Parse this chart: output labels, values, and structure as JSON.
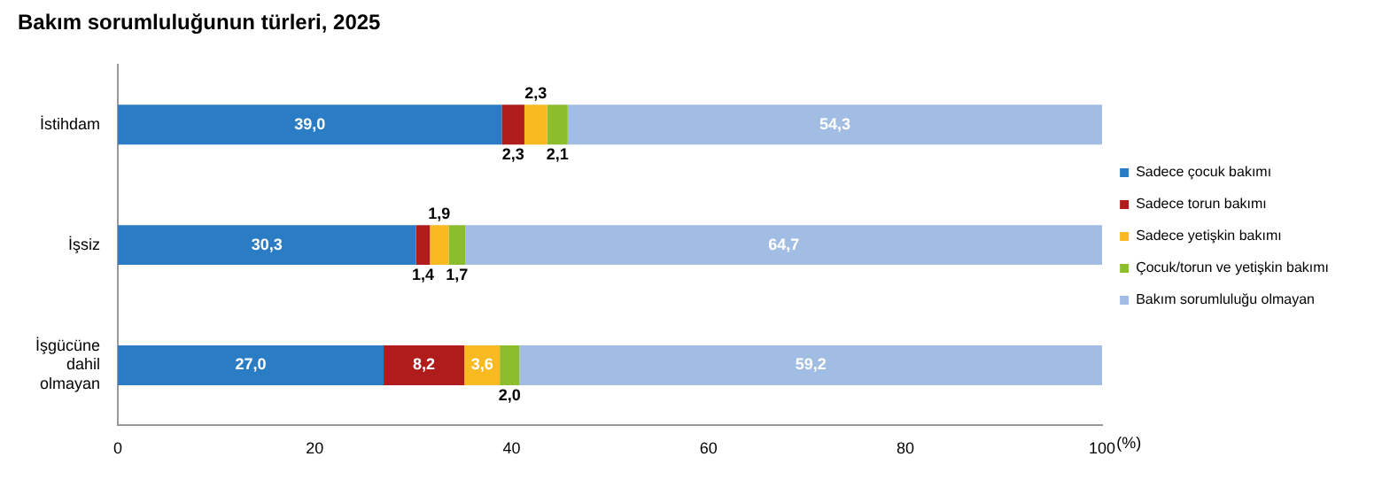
{
  "chart_data": {
    "type": "bar",
    "orientation": "horizontal",
    "stacked": true,
    "title": "Bakım sorumluluğunun türleri, 2025",
    "xlabel": "(%)",
    "categories": [
      "İstihdam",
      "İşsiz",
      "İşgücüne dahil olmayan"
    ],
    "series": [
      {
        "name": "Sadece çocuk bakımı",
        "color": "#2a7dc4",
        "values": [
          39.0,
          30.3,
          27.0
        ],
        "value_labels": [
          "39,0",
          "30,3",
          "27,0"
        ]
      },
      {
        "name": "Sadece torun bakımı",
        "color": "#b01c1c",
        "values": [
          2.3,
          1.4,
          8.2
        ],
        "value_labels": [
          "2,3",
          "1,4",
          "8,2"
        ]
      },
      {
        "name": "Sadece yetişkin bakımı",
        "color": "#f9b921",
        "values": [
          2.3,
          1.9,
          3.6
        ],
        "value_labels": [
          "2,3",
          "1,9",
          "3,6"
        ]
      },
      {
        "name": "Çocuk/torun ve yetişkin bakımı",
        "color": "#8cbd2c",
        "values": [
          2.1,
          1.7,
          2.0
        ],
        "value_labels": [
          "2,1",
          "1,7",
          "2,0"
        ]
      },
      {
        "name": "Bakım sorumluluğu olmayan",
        "color": "#a2bde3",
        "values": [
          54.3,
          64.7,
          59.2
        ],
        "value_labels": [
          "54,3",
          "64,7",
          "59,2"
        ]
      }
    ],
    "xlim": [
      0,
      100
    ],
    "xticks": [
      0,
      20,
      40,
      60,
      80,
      100
    ],
    "grid": false,
    "legend": "right"
  }
}
